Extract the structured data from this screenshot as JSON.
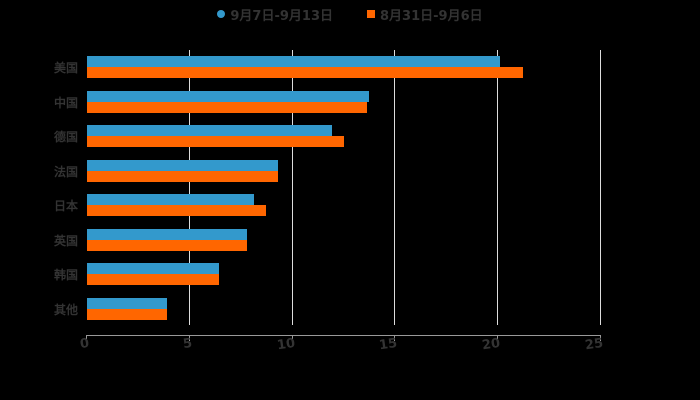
{
  "chart_data": {
    "type": "bar",
    "orientation": "horizontal",
    "title": "",
    "xlabel": "",
    "ylabel": "",
    "categories": [
      "美国",
      "中国",
      "德国",
      "法国",
      "日本",
      "英国",
      "韩国",
      "其他"
    ],
    "series": [
      {
        "name": "9月7日-9月13日",
        "color": "#3399cc",
        "marker": "circle",
        "values": [
          20.1,
          13.7,
          11.9,
          9.3,
          8.1,
          7.8,
          6.4,
          3.9
        ]
      },
      {
        "name": "8月31日-9月6日",
        "color": "#ff6600",
        "marker": "square",
        "values": [
          21.2,
          13.6,
          12.5,
          9.3,
          8.7,
          7.8,
          6.4,
          3.9
        ]
      }
    ],
    "xlim": [
      0,
      25
    ],
    "xticks": [
      "0",
      "5",
      "10",
      "15",
      "20",
      "25"
    ],
    "grid": true,
    "legend_position": "top"
  },
  "legend": {
    "items": [
      {
        "label": "9月7日-9月13日",
        "color": "#3399cc"
      },
      {
        "label": "8月31日-9月6日",
        "color": "#ff6600"
      }
    ]
  }
}
